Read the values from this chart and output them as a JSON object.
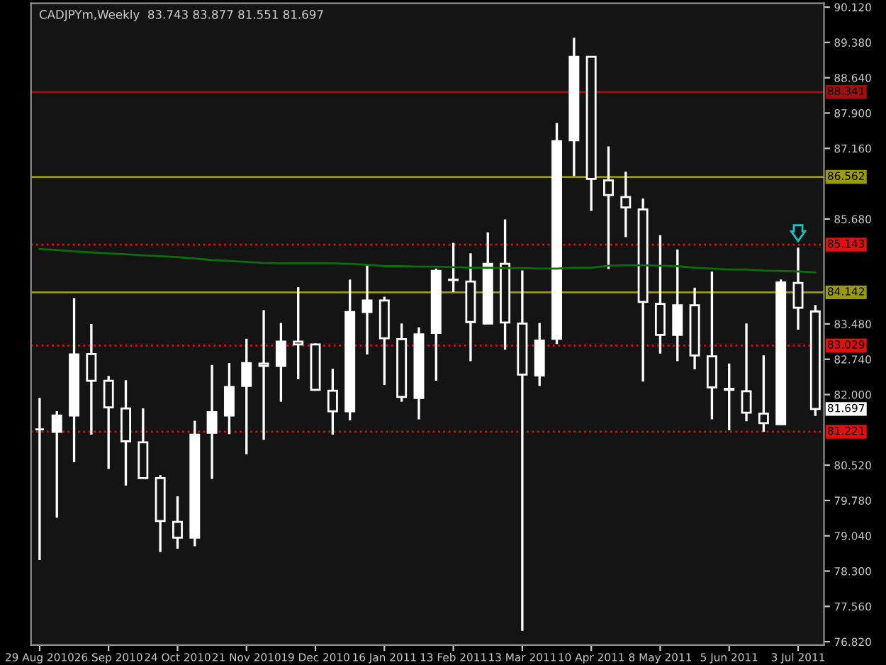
{
  "chart_data": {
    "type": "candlestick",
    "title": "CADJPYm,Weekly  83.743 83.877 81.551 81.697",
    "categories": [
      "29 Aug 2010",
      null,
      null,
      null,
      "26 Sep 2010",
      null,
      null,
      null,
      "24 Oct 2010",
      null,
      null,
      null,
      "21 Nov 2010",
      null,
      null,
      null,
      "19 Dec 2010",
      null,
      null,
      null,
      "16 Jan 2011",
      null,
      null,
      null,
      "13 Feb 2011",
      null,
      null,
      null,
      "13 Mar 2011",
      null,
      null,
      null,
      "10 Apr 2011",
      null,
      null,
      null,
      "8 May 2011",
      null,
      null,
      null,
      "5 Jun 2011",
      null,
      null,
      null,
      "3 Jul 2011",
      null
    ],
    "ohlc": [
      [
        81.27,
        81.93,
        78.53,
        81.27
      ],
      [
        81.22,
        81.65,
        79.42,
        81.56
      ],
      [
        81.56,
        84.02,
        80.58,
        82.84
      ],
      [
        82.85,
        83.48,
        81.16,
        82.29
      ],
      [
        82.29,
        82.39,
        80.44,
        81.73
      ],
      [
        81.71,
        82.3,
        80.09,
        81.02
      ],
      [
        81.0,
        81.71,
        80.25,
        80.25
      ],
      [
        80.25,
        80.31,
        78.7,
        79.35
      ],
      [
        79.33,
        79.87,
        78.77,
        79.0
      ],
      [
        79.0,
        81.45,
        78.82,
        81.16
      ],
      [
        81.2,
        82.62,
        80.23,
        81.63
      ],
      [
        81.56,
        82.66,
        81.17,
        82.16
      ],
      [
        82.18,
        83.17,
        80.75,
        82.66
      ],
      [
        82.65,
        83.77,
        81.05,
        82.6
      ],
      [
        82.6,
        83.5,
        81.85,
        83.11
      ],
      [
        83.11,
        84.25,
        82.32,
        83.05
      ],
      [
        83.05,
        83.07,
        82.08,
        82.1
      ],
      [
        82.08,
        82.54,
        81.16,
        81.65
      ],
      [
        81.65,
        84.41,
        81.46,
        83.73
      ],
      [
        83.73,
        84.73,
        82.84,
        83.97
      ],
      [
        83.97,
        84.05,
        82.2,
        83.18
      ],
      [
        83.16,
        83.49,
        81.85,
        81.95
      ],
      [
        81.93,
        83.41,
        81.48,
        83.26
      ],
      [
        83.29,
        84.64,
        82.29,
        84.59
      ],
      [
        84.41,
        85.18,
        84.15,
        84.4
      ],
      [
        84.37,
        84.96,
        82.7,
        83.52
      ],
      [
        83.49,
        85.4,
        83.48,
        84.74
      ],
      [
        84.74,
        85.67,
        82.94,
        83.51
      ],
      [
        83.49,
        84.6,
        77.05,
        82.42
      ],
      [
        82.4,
        83.5,
        82.18,
        83.13
      ],
      [
        83.17,
        87.69,
        83.06,
        87.31
      ],
      [
        87.33,
        89.48,
        86.58,
        89.08
      ],
      [
        89.08,
        89.08,
        85.85,
        86.52
      ],
      [
        86.49,
        87.2,
        84.63,
        86.18
      ],
      [
        86.14,
        86.67,
        85.3,
        85.92
      ],
      [
        85.88,
        86.11,
        82.27,
        83.94
      ],
      [
        83.9,
        85.34,
        82.86,
        83.25
      ],
      [
        83.25,
        85.04,
        82.7,
        83.87
      ],
      [
        83.87,
        84.24,
        82.53,
        82.82
      ],
      [
        82.8,
        84.58,
        81.48,
        82.15
      ],
      [
        82.12,
        82.65,
        81.25,
        82.1
      ],
      [
        82.07,
        83.49,
        81.44,
        81.62
      ],
      [
        81.6,
        82.82,
        81.22,
        81.4
      ],
      [
        81.38,
        84.41,
        81.38,
        84.35
      ],
      [
        84.34,
        85.08,
        83.36,
        83.82
      ],
      [
        83.743,
        83.877,
        81.551,
        81.697
      ]
    ],
    "color": "#ffffff",
    "series": [
      {
        "type": "line",
        "color": "#0a6e0a",
        "values": [
          85.05,
          85.03,
          85.0,
          84.98,
          84.96,
          84.94,
          84.92,
          84.9,
          84.88,
          84.85,
          84.82,
          84.8,
          84.78,
          84.76,
          84.75,
          84.75,
          84.75,
          84.75,
          84.74,
          84.72,
          84.69,
          84.69,
          84.68,
          84.68,
          84.67,
          84.66,
          84.66,
          84.65,
          84.65,
          84.64,
          84.64,
          84.66,
          84.66,
          84.7,
          84.71,
          84.71,
          84.7,
          84.69,
          84.66,
          84.64,
          84.62,
          84.62,
          84.6,
          84.59,
          84.58,
          84.56
        ]
      }
    ],
    "ylim": [
      76.75,
      90.2
    ],
    "yticks": [
      {
        "value": 90.12,
        "label": "90.120"
      },
      {
        "value": 89.38,
        "label": "89.380"
      },
      {
        "value": 88.64,
        "label": "88.640"
      },
      {
        "value": 87.9,
        "label": "87.900"
      },
      {
        "value": 87.16,
        "label": "87.160"
      },
      {
        "value": 85.68,
        "label": "85.680"
      },
      {
        "value": 83.48,
        "label": "83.480"
      },
      {
        "value": 82.74,
        "label": "82.740"
      },
      {
        "value": 82.0,
        "label": "82.000"
      },
      {
        "value": 80.52,
        "label": "80.520"
      },
      {
        "value": 79.78,
        "label": "79.780"
      },
      {
        "value": 79.04,
        "label": "79.040"
      },
      {
        "value": 78.3,
        "label": "78.300"
      },
      {
        "value": 77.56,
        "label": "77.560"
      },
      {
        "value": 76.82,
        "label": "76.820"
      }
    ],
    "ref_lines": [
      {
        "axis": "y",
        "value": 88.341,
        "label": "88.341",
        "color": "#a01010",
        "line_style": "solid"
      },
      {
        "axis": "y",
        "value": 86.562,
        "label": "86.562",
        "color": "#9a9a10",
        "line_style": "solid"
      },
      {
        "axis": "y",
        "value": 85.143,
        "label": "85.143",
        "color": "#e01010",
        "line_style": "dotted"
      },
      {
        "axis": "y",
        "value": 84.142,
        "label": "84.142",
        "color": "#9a9a10",
        "line_style": "solid"
      },
      {
        "axis": "y",
        "value": 83.029,
        "label": "83.029",
        "color": "#e01010",
        "line_style": "dotted"
      },
      {
        "axis": "y",
        "value": 81.221,
        "label": "81.221",
        "color": "#e01010",
        "line_style": "dotted"
      }
    ],
    "annotations": [
      "81.697"
    ],
    "grid": false,
    "legend": false
  }
}
